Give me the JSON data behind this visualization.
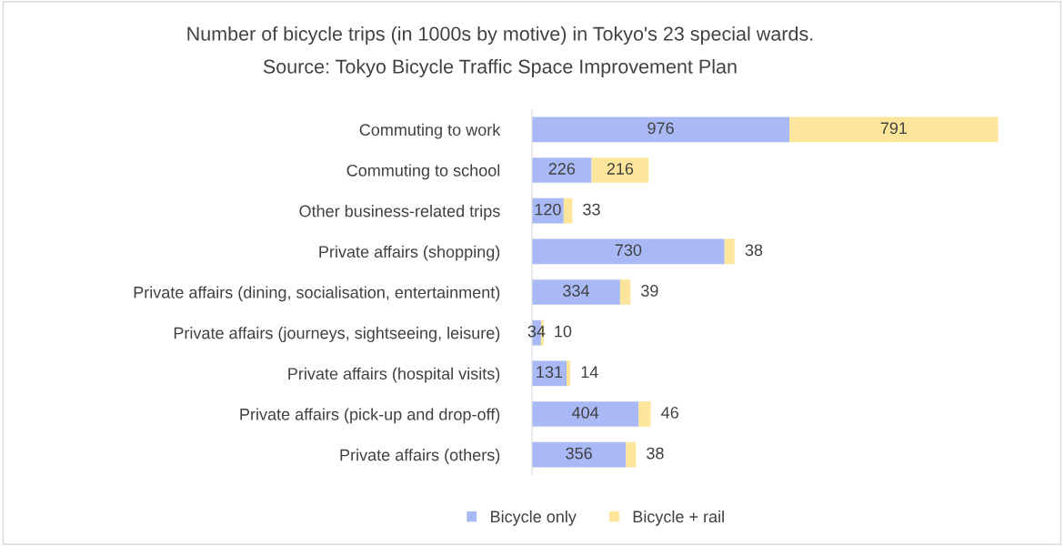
{
  "chart_data": {
    "type": "bar",
    "orientation": "horizontal",
    "stacked": true,
    "title": "Number of bicycle trips (in 1000s by motive) in Tokyo's 23 special wards.",
    "subtitle": "Source: Tokyo Bicycle Traffic Space Improvement Plan",
    "categories": [
      "Commuting to work",
      "Commuting to school",
      "Other business-related trips",
      "Private affairs (shopping)",
      "Private affairs (dining, socialisation, entertainment)",
      "Private affairs (journeys, sightseeing, leisure)",
      "Private affairs (hospital visits)",
      "Private affairs (pick-up and drop-off)",
      "Private affairs (others)"
    ],
    "series": [
      {
        "name": "Bicycle only",
        "color": "#a9b9f5",
        "values": [
          976,
          226,
          120,
          730,
          334,
          34,
          131,
          404,
          356
        ]
      },
      {
        "name": "Bicycle + rail",
        "color": "#fde69b",
        "values": [
          791,
          216,
          33,
          38,
          39,
          10,
          14,
          46,
          38
        ]
      }
    ],
    "data_labels": true,
    "legend": "bottom",
    "grid": false,
    "tick_labels": "y"
  }
}
